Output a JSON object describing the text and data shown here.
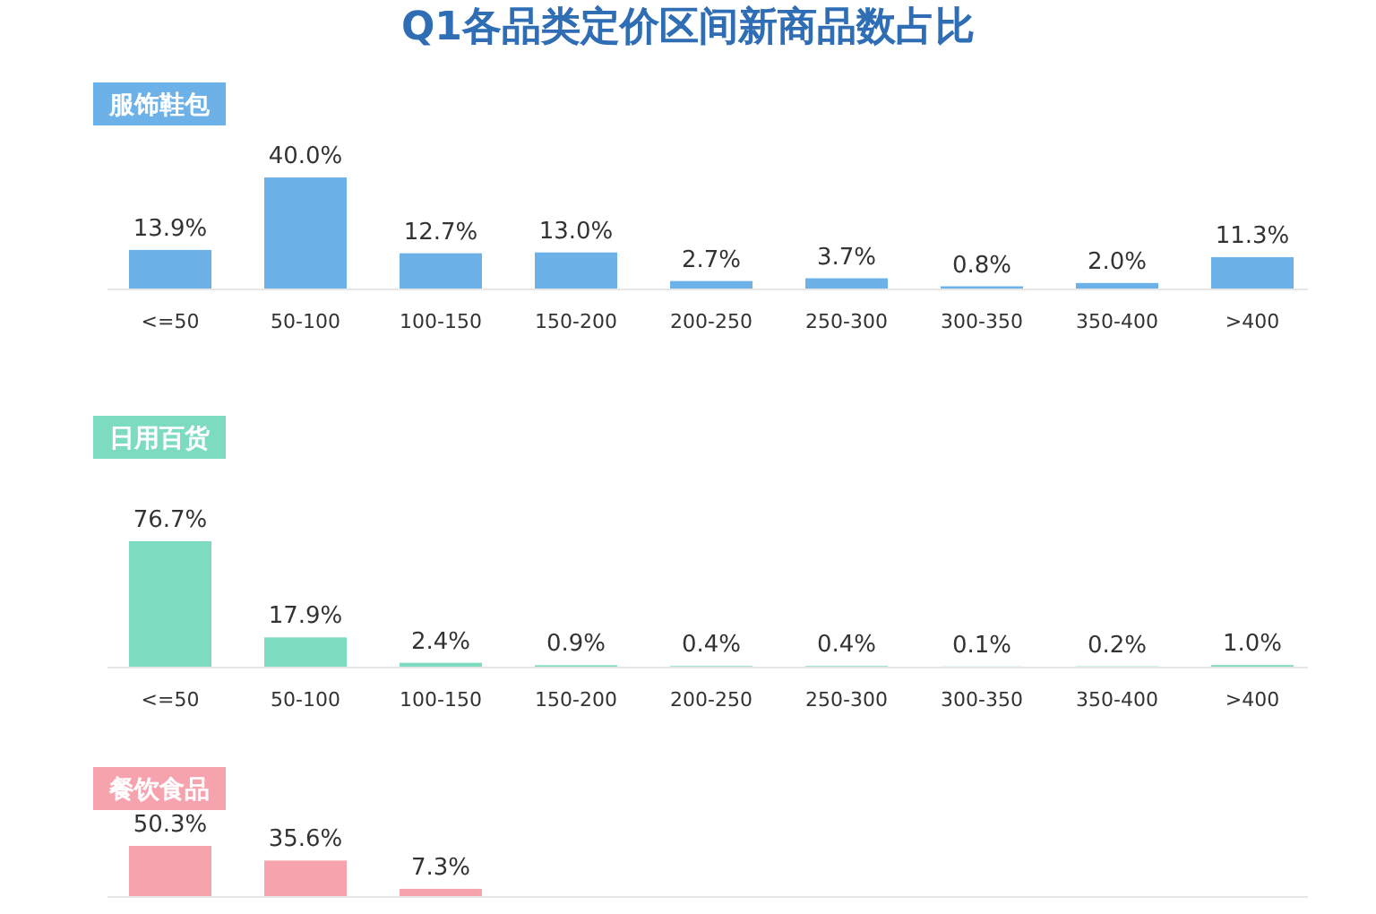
{
  "chart_data": [
    {
      "type": "other",
      "title": "Q1各品类定价区间新商品数占比"
    },
    {
      "type": "bar",
      "title": "服饰鞋包",
      "categories": [
        "<=50",
        "50-100",
        "100-150",
        "150-200",
        "200-250",
        "250-300",
        "300-350",
        "350-400",
        ">400"
      ],
      "values": [
        13.9,
        40.0,
        12.7,
        13.0,
        2.7,
        3.7,
        0.8,
        2.0,
        11.3
      ],
      "color": "#6cb2e8",
      "value_labels": [
        "13.9%",
        "40.0%",
        "12.7%",
        "13.0%",
        "2.7%",
        "3.7%",
        "0.8%",
        "2.0%",
        "11.3%"
      ]
    },
    {
      "type": "bar",
      "title": "日用百货",
      "categories": [
        "<=50",
        "50-100",
        "100-150",
        "150-200",
        "200-250",
        "250-300",
        "300-350",
        "350-400",
        ">400"
      ],
      "values": [
        76.7,
        17.9,
        2.4,
        0.9,
        0.4,
        0.4,
        0.1,
        0.2,
        1.0
      ],
      "color": "#7ddcc0",
      "value_labels": [
        "76.7%",
        "17.9%",
        "2.4%",
        "0.9%",
        "0.4%",
        "0.4%",
        "0.1%",
        "0.2%",
        "1.0%"
      ]
    },
    {
      "type": "bar",
      "title": "餐饮食品",
      "categories": [
        null,
        null,
        null,
        null,
        null,
        null,
        null,
        null,
        null
      ],
      "values": [
        50.3,
        35.6,
        7.3,
        null,
        null,
        null,
        null,
        null,
        null
      ],
      "color": "#f7a3ae",
      "value_labels": [
        "50.3%",
        "35.6%",
        "7.3%",
        null,
        null,
        null,
        null,
        null,
        null
      ]
    }
  ]
}
